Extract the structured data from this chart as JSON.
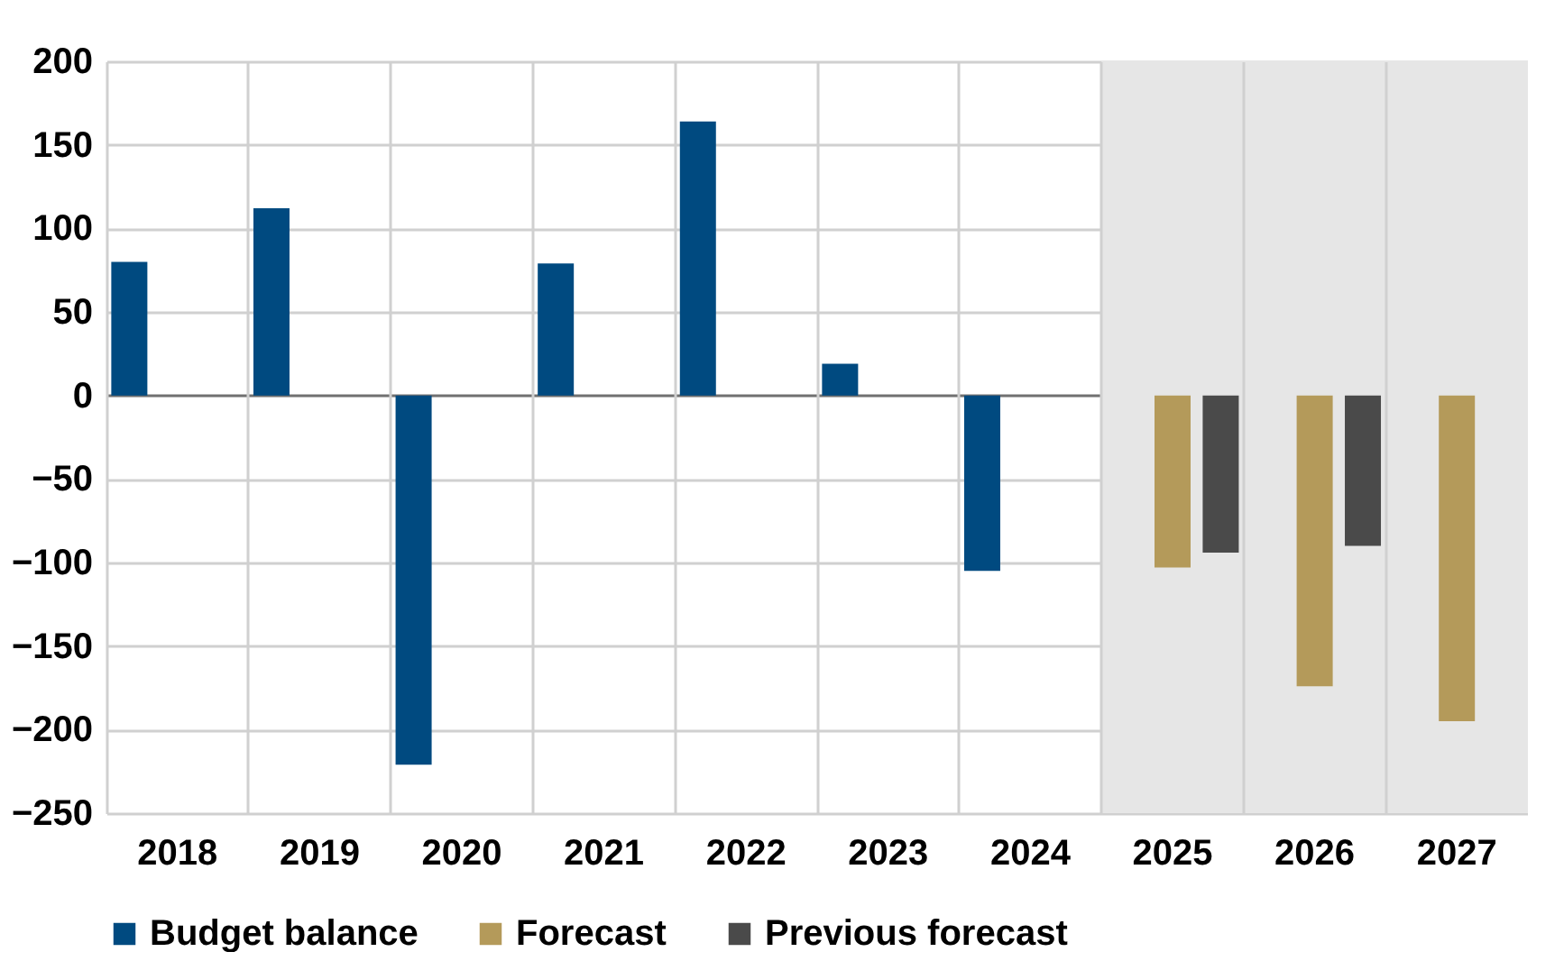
{
  "chart_data": {
    "type": "bar",
    "categories": [
      "2018",
      "2019",
      "2020",
      "2021",
      "2022",
      "2023",
      "2024",
      "2025",
      "2026",
      "2027"
    ],
    "series": [
      {
        "name": "Budget balance",
        "color": "#004a80",
        "values": [
          80,
          112,
          -221,
          79,
          164,
          19,
          -105,
          null,
          null,
          null
        ]
      },
      {
        "name": "Forecast",
        "color": "#b49a5a",
        "values": [
          null,
          null,
          null,
          null,
          null,
          null,
          null,
          -103,
          -174,
          -195
        ]
      },
      {
        "name": "Previous forecast",
        "color": "#4a4a4a",
        "values": [
          null,
          null,
          null,
          null,
          null,
          null,
          null,
          -94,
          -90,
          null
        ]
      }
    ],
    "ylim": [
      -250,
      200
    ],
    "yticks": [
      -250,
      -200,
      -150,
      -100,
      -50,
      0,
      50,
      100,
      150,
      200
    ],
    "grid": true,
    "legend": "bottom",
    "bands": [
      {
        "axis": "x",
        "from": "2025",
        "to": "2027",
        "color": "#e6e6e6"
      }
    ]
  }
}
